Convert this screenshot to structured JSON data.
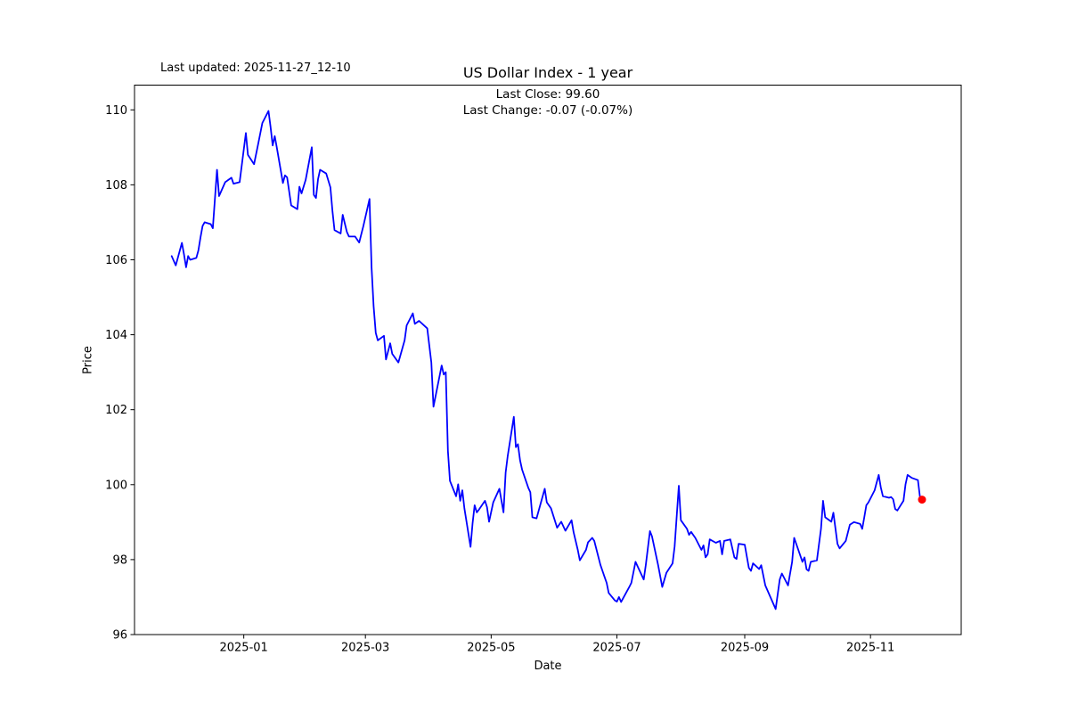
{
  "figure": {
    "last_updated": "Last updated: 2025-11-27_12-10",
    "title": "US Dollar Index - 1 year",
    "annotation": {
      "line1": "Last Close: 99.60",
      "line2": "Last Change: -0.07 (-0.07%)"
    },
    "xlabel": "Date",
    "ylabel": "Price"
  },
  "chart_data": {
    "type": "line",
    "title": "US Dollar Index - 1 year",
    "xlabel": "Date",
    "ylabel": "Price",
    "grid": false,
    "legend": "none",
    "line_color": "#0000ff",
    "last_point_marker_color": "#ff0000",
    "last_close": 99.6,
    "last_change": -0.07,
    "last_change_pct": "-0.07%",
    "x_tick_labels": [
      "2025-01",
      "2025-03",
      "2025-05",
      "2025-07",
      "2025-09",
      "2025-11"
    ],
    "y_tick_labels": [
      96,
      98,
      100,
      102,
      104,
      106,
      108,
      110
    ],
    "xlim": [
      "2024-11-09",
      "2025-12-15"
    ],
    "ylim": [
      96.0,
      110.66
    ],
    "series": [
      {
        "name": "US Dollar Index",
        "points": [
          [
            "2024-11-27",
            106.1
          ],
          [
            "2024-11-29",
            105.85
          ],
          [
            "2024-12-02",
            106.45
          ],
          [
            "2024-12-03",
            106.15
          ],
          [
            "2024-12-04",
            105.8
          ],
          [
            "2024-12-05",
            106.1
          ],
          [
            "2024-12-06",
            106.0
          ],
          [
            "2024-12-09",
            106.05
          ],
          [
            "2024-12-10",
            106.25
          ],
          [
            "2024-12-11",
            106.6
          ],
          [
            "2024-12-12",
            106.9
          ],
          [
            "2024-12-13",
            107.0
          ],
          [
            "2024-12-16",
            106.95
          ],
          [
            "2024-12-17",
            106.84
          ],
          [
            "2024-12-19",
            108.4
          ],
          [
            "2024-12-20",
            107.7
          ],
          [
            "2024-12-23",
            108.07
          ],
          [
            "2024-12-26",
            108.19
          ],
          [
            "2024-12-27",
            108.03
          ],
          [
            "2024-12-30",
            108.07
          ],
          [
            "2025-01-02",
            109.38
          ],
          [
            "2025-01-03",
            108.8
          ],
          [
            "2025-01-06",
            108.55
          ],
          [
            "2025-01-08",
            109.1
          ],
          [
            "2025-01-10",
            109.65
          ],
          [
            "2025-01-13",
            109.97
          ],
          [
            "2025-01-14",
            109.55
          ],
          [
            "2025-01-15",
            109.05
          ],
          [
            "2025-01-16",
            109.3
          ],
          [
            "2025-01-17",
            109.0
          ],
          [
            "2025-01-20",
            108.05
          ],
          [
            "2025-01-21",
            108.25
          ],
          [
            "2025-01-22",
            108.2
          ],
          [
            "2025-01-24",
            107.45
          ],
          [
            "2025-01-27",
            107.35
          ],
          [
            "2025-01-28",
            107.95
          ],
          [
            "2025-01-29",
            107.77
          ],
          [
            "2025-01-31",
            108.13
          ],
          [
            "2025-02-03",
            109.0
          ],
          [
            "2025-02-04",
            107.73
          ],
          [
            "2025-02-05",
            107.65
          ],
          [
            "2025-02-06",
            108.15
          ],
          [
            "2025-02-07",
            108.4
          ],
          [
            "2025-02-10",
            108.3
          ],
          [
            "2025-02-12",
            107.93
          ],
          [
            "2025-02-13",
            107.3
          ],
          [
            "2025-02-14",
            106.79
          ],
          [
            "2025-02-17",
            106.7
          ],
          [
            "2025-02-18",
            107.2
          ],
          [
            "2025-02-20",
            106.74
          ],
          [
            "2025-02-21",
            106.62
          ],
          [
            "2025-02-24",
            106.62
          ],
          [
            "2025-02-26",
            106.46
          ],
          [
            "2025-02-28",
            106.9
          ],
          [
            "2025-03-03",
            107.62
          ],
          [
            "2025-03-04",
            105.8
          ],
          [
            "2025-03-05",
            104.76
          ],
          [
            "2025-03-06",
            104.05
          ],
          [
            "2025-03-07",
            103.85
          ],
          [
            "2025-03-10",
            103.97
          ],
          [
            "2025-03-11",
            103.34
          ],
          [
            "2025-03-13",
            103.77
          ],
          [
            "2025-03-14",
            103.49
          ],
          [
            "2025-03-17",
            103.26
          ],
          [
            "2025-03-20",
            103.85
          ],
          [
            "2025-03-21",
            104.25
          ],
          [
            "2025-03-24",
            104.57
          ],
          [
            "2025-03-25",
            104.29
          ],
          [
            "2025-03-27",
            104.37
          ],
          [
            "2025-03-31",
            104.17
          ],
          [
            "2025-04-02",
            103.26
          ],
          [
            "2025-04-03",
            102.08
          ],
          [
            "2025-04-07",
            103.18
          ],
          [
            "2025-04-08",
            102.94
          ],
          [
            "2025-04-09",
            103.0
          ],
          [
            "2025-04-10",
            100.9
          ],
          [
            "2025-04-11",
            100.1
          ],
          [
            "2025-04-14",
            99.69
          ],
          [
            "2025-04-15",
            100.01
          ],
          [
            "2025-04-16",
            99.57
          ],
          [
            "2025-04-17",
            99.85
          ],
          [
            "2025-04-18",
            99.37
          ],
          [
            "2025-04-21",
            98.34
          ],
          [
            "2025-04-22",
            98.97
          ],
          [
            "2025-04-23",
            99.45
          ],
          [
            "2025-04-24",
            99.26
          ],
          [
            "2025-04-25",
            99.33
          ],
          [
            "2025-04-28",
            99.57
          ],
          [
            "2025-04-29",
            99.4
          ],
          [
            "2025-04-30",
            99.01
          ],
          [
            "2025-05-02",
            99.53
          ],
          [
            "2025-05-05",
            99.89
          ],
          [
            "2025-05-07",
            99.26
          ],
          [
            "2025-05-08",
            100.32
          ],
          [
            "2025-05-09",
            100.76
          ],
          [
            "2025-05-12",
            101.81
          ],
          [
            "2025-05-13",
            101.0
          ],
          [
            "2025-05-14",
            101.08
          ],
          [
            "2025-05-15",
            100.65
          ],
          [
            "2025-05-16",
            100.4
          ],
          [
            "2025-05-19",
            99.92
          ],
          [
            "2025-05-20",
            99.8
          ],
          [
            "2025-05-21",
            99.13
          ],
          [
            "2025-05-23",
            99.1
          ],
          [
            "2025-05-27",
            99.89
          ],
          [
            "2025-05-28",
            99.53
          ],
          [
            "2025-05-30",
            99.37
          ],
          [
            "2025-06-02",
            98.85
          ],
          [
            "2025-06-04",
            99.01
          ],
          [
            "2025-06-06",
            98.77
          ],
          [
            "2025-06-09",
            99.05
          ],
          [
            "2025-06-10",
            98.73
          ],
          [
            "2025-06-12",
            98.26
          ],
          [
            "2025-06-13",
            97.98
          ],
          [
            "2025-06-16",
            98.26
          ],
          [
            "2025-06-17",
            98.46
          ],
          [
            "2025-06-19",
            98.58
          ],
          [
            "2025-06-20",
            98.5
          ],
          [
            "2025-06-23",
            97.86
          ],
          [
            "2025-06-24",
            97.7
          ],
          [
            "2025-06-25",
            97.54
          ],
          [
            "2025-06-26",
            97.38
          ],
          [
            "2025-06-27",
            97.11
          ],
          [
            "2025-06-30",
            96.91
          ],
          [
            "2025-07-01",
            96.88
          ],
          [
            "2025-07-02",
            97.0
          ],
          [
            "2025-07-03",
            96.87
          ],
          [
            "2025-07-07",
            97.27
          ],
          [
            "2025-07-08",
            97.38
          ],
          [
            "2025-07-10",
            97.94
          ],
          [
            "2025-07-14",
            97.47
          ],
          [
            "2025-07-15",
            97.85
          ],
          [
            "2025-07-17",
            98.76
          ],
          [
            "2025-07-18",
            98.62
          ],
          [
            "2025-07-21",
            97.85
          ],
          [
            "2025-07-23",
            97.27
          ],
          [
            "2025-07-25",
            97.65
          ],
          [
            "2025-07-28",
            97.9
          ],
          [
            "2025-07-29",
            98.35
          ],
          [
            "2025-07-31",
            99.97
          ],
          [
            "2025-08-01",
            99.05
          ],
          [
            "2025-08-04",
            98.82
          ],
          [
            "2025-08-05",
            98.66
          ],
          [
            "2025-08-06",
            98.74
          ],
          [
            "2025-08-08",
            98.58
          ],
          [
            "2025-08-11",
            98.26
          ],
          [
            "2025-08-12",
            98.38
          ],
          [
            "2025-08-13",
            98.06
          ],
          [
            "2025-08-14",
            98.14
          ],
          [
            "2025-08-15",
            98.54
          ],
          [
            "2025-08-18",
            98.45
          ],
          [
            "2025-08-20",
            98.5
          ],
          [
            "2025-08-21",
            98.14
          ],
          [
            "2025-08-22",
            98.5
          ],
          [
            "2025-08-25",
            98.54
          ],
          [
            "2025-08-27",
            98.06
          ],
          [
            "2025-08-28",
            98.02
          ],
          [
            "2025-08-29",
            98.42
          ],
          [
            "2025-09-01",
            98.4
          ],
          [
            "2025-09-03",
            97.78
          ],
          [
            "2025-09-04",
            97.7
          ],
          [
            "2025-09-05",
            97.9
          ],
          [
            "2025-09-08",
            97.75
          ],
          [
            "2025-09-09",
            97.85
          ],
          [
            "2025-09-11",
            97.31
          ],
          [
            "2025-09-16",
            96.68
          ],
          [
            "2025-09-18",
            97.47
          ],
          [
            "2025-09-19",
            97.63
          ],
          [
            "2025-09-22",
            97.31
          ],
          [
            "2025-09-24",
            97.94
          ],
          [
            "2025-09-25",
            98.58
          ],
          [
            "2025-09-29",
            97.94
          ],
          [
            "2025-09-30",
            98.06
          ],
          [
            "2025-10-01",
            97.74
          ],
          [
            "2025-10-02",
            97.7
          ],
          [
            "2025-10-03",
            97.94
          ],
          [
            "2025-10-06",
            97.98
          ],
          [
            "2025-10-08",
            98.82
          ],
          [
            "2025-10-09",
            99.57
          ],
          [
            "2025-10-10",
            99.13
          ],
          [
            "2025-10-13",
            99.01
          ],
          [
            "2025-10-14",
            99.25
          ],
          [
            "2025-10-16",
            98.42
          ],
          [
            "2025-10-17",
            98.3
          ],
          [
            "2025-10-20",
            98.5
          ],
          [
            "2025-10-22",
            98.93
          ],
          [
            "2025-10-24",
            99.0
          ],
          [
            "2025-10-27",
            98.95
          ],
          [
            "2025-10-28",
            98.82
          ],
          [
            "2025-10-29",
            99.13
          ],
          [
            "2025-10-30",
            99.45
          ],
          [
            "2025-10-31",
            99.53
          ],
          [
            "2025-11-03",
            99.85
          ],
          [
            "2025-11-05",
            100.26
          ],
          [
            "2025-11-06",
            99.93
          ],
          [
            "2025-11-07",
            99.69
          ],
          [
            "2025-11-10",
            99.65
          ],
          [
            "2025-11-11",
            99.67
          ],
          [
            "2025-11-12",
            99.61
          ],
          [
            "2025-11-13",
            99.35
          ],
          [
            "2025-11-14",
            99.31
          ],
          [
            "2025-11-17",
            99.57
          ],
          [
            "2025-11-18",
            100.01
          ],
          [
            "2025-11-19",
            100.26
          ],
          [
            "2025-11-20",
            100.22
          ],
          [
            "2025-11-21",
            100.18
          ],
          [
            "2025-11-24",
            100.12
          ],
          [
            "2025-11-25",
            99.67
          ],
          [
            "2025-11-26",
            99.6
          ]
        ]
      }
    ]
  }
}
